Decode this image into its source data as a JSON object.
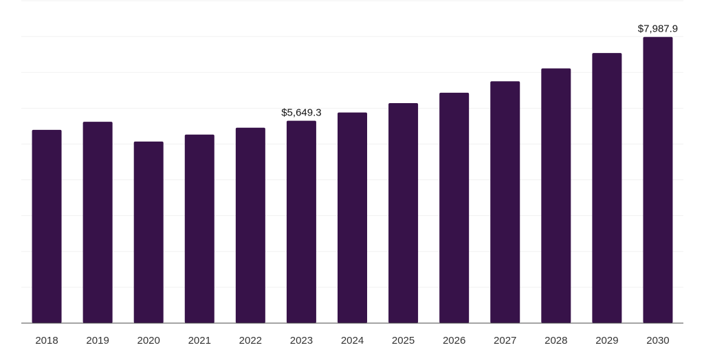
{
  "chart_data": {
    "type": "bar",
    "categories": [
      "2018",
      "2019",
      "2020",
      "2021",
      "2022",
      "2023",
      "2024",
      "2025",
      "2026",
      "2027",
      "2028",
      "2029",
      "2030"
    ],
    "series": [
      {
        "values": [
          5394,
          5621,
          5068,
          5263,
          5455,
          5649.3,
          5880,
          6140,
          6430,
          6750,
          7110,
          7540,
          7987.9
        ]
      }
    ],
    "data_labels": [
      {
        "index": 5,
        "text": "$5,649.3"
      },
      {
        "index": 12,
        "text": "$7,987.9"
      }
    ],
    "ylim": [
      0,
      9000
    ],
    "grid": true,
    "legend": "none",
    "title": "",
    "xlabel": "",
    "ylabel": "",
    "colors": {
      "bar": "#371249",
      "grid": "#f1f1f1",
      "axis": "#4a4a4a"
    }
  }
}
